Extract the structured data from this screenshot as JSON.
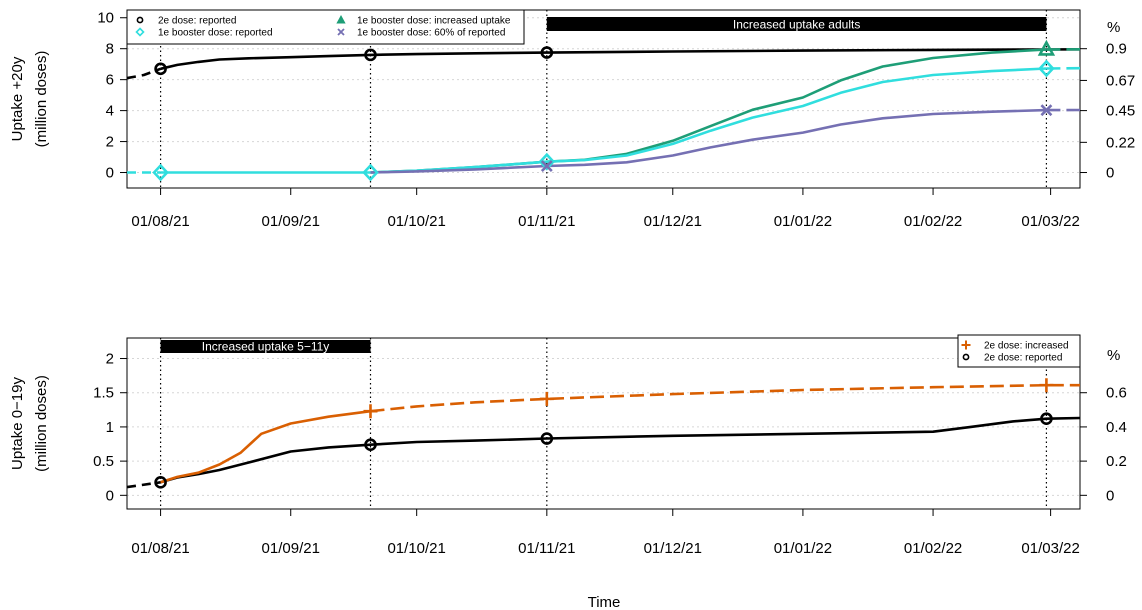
{
  "xlabel": "Time",
  "colors": {
    "reported_2e": "#000000",
    "booster_reported": "#30dede",
    "booster_increased": "#1e9e77",
    "booster_60pct": "#7570b3",
    "increased_2e": "#d95f02"
  },
  "chart_data": [
    {
      "type": "line",
      "ylabel": "Uptake +20y",
      "ylabel2": "(million doses)",
      "y2_unit": "%",
      "ylim": [
        -1,
        10.5
      ],
      "yticks": [
        0,
        2,
        4,
        6,
        8,
        10
      ],
      "y2_ticks": [
        {
          "label": "0",
          "at": 0
        },
        {
          "label": "0.22",
          "at": 1.95
        },
        {
          "label": "0.45",
          "at": 4.0
        },
        {
          "label": "0.67",
          "at": 5.95
        },
        {
          "label": "0.9",
          "at": 8.0
        }
      ],
      "x_ticks": [
        "01/08/21",
        "01/09/21",
        "01/10/21",
        "01/11/21",
        "01/12/21",
        "01/01/22",
        "01/02/22",
        "01/03/22"
      ],
      "grid": "horizontal dotted",
      "vlines": [
        "2021-08-01",
        "2021-09-20",
        "2021-11-01",
        "2022-02-28"
      ],
      "band": {
        "label": "Increased uptake adults",
        "start": "2021-11-01",
        "end": "2022-02-28"
      },
      "legend": {
        "position": "top-left",
        "entries": [
          {
            "label": "2e dose: reported",
            "series": "reported_2e",
            "marker": "circle"
          },
          {
            "label": "1e booster dose: reported",
            "series": "booster_reported",
            "marker": "diamond"
          },
          {
            "label": "1e booster dose: increased uptake",
            "series": "booster_increased",
            "marker": "triangle"
          },
          {
            "label": "1e booster dose: 60% of reported",
            "series": "booster_60pct",
            "marker": "cross"
          }
        ]
      },
      "series": [
        {
          "key": "reported_2e",
          "color": "#000000",
          "dashed_before": "2021-08-01",
          "dashed_after": null,
          "points": [
            [
              "2021-07-24",
              6.1
            ],
            [
              "2021-07-28",
              6.3
            ],
            [
              "2021-08-01",
              6.7
            ],
            [
              "2021-08-05",
              6.95
            ],
            [
              "2021-08-10",
              7.15
            ],
            [
              "2021-08-15",
              7.3
            ],
            [
              "2021-08-22",
              7.38
            ],
            [
              "2021-09-01",
              7.45
            ],
            [
              "2021-09-10",
              7.52
            ],
            [
              "2021-09-20",
              7.6
            ],
            [
              "2021-10-01",
              7.65
            ],
            [
              "2021-10-15",
              7.7
            ],
            [
              "2021-11-01",
              7.75
            ],
            [
              "2021-12-01",
              7.82
            ],
            [
              "2022-01-01",
              7.88
            ],
            [
              "2022-02-01",
              7.92
            ],
            [
              "2022-02-28",
              7.95
            ],
            [
              "2022-03-08",
              7.96
            ]
          ],
          "markers": [
            [
              "2021-08-01",
              6.7
            ],
            [
              "2021-09-20",
              7.6
            ],
            [
              "2021-11-01",
              7.75
            ]
          ]
        },
        {
          "key": "booster_increased",
          "color": "#1e9e77",
          "dashed_before": null,
          "dashed_after": "2022-02-28",
          "points": [
            [
              "2021-09-20",
              0.0
            ],
            [
              "2021-10-01",
              0.12
            ],
            [
              "2021-10-15",
              0.35
            ],
            [
              "2021-11-01",
              0.7
            ],
            [
              "2021-11-10",
              0.82
            ],
            [
              "2021-11-20",
              1.2
            ],
            [
              "2021-12-01",
              2.05
            ],
            [
              "2021-12-10",
              3.0
            ],
            [
              "2021-12-20",
              4.05
            ],
            [
              "2022-01-01",
              4.85
            ],
            [
              "2022-01-10",
              5.95
            ],
            [
              "2022-01-20",
              6.85
            ],
            [
              "2022-02-01",
              7.4
            ],
            [
              "2022-02-15",
              7.75
            ],
            [
              "2022-02-28",
              7.95
            ],
            [
              "2022-03-08",
              7.96
            ]
          ],
          "markers": [
            [
              "2022-02-28",
              7.95
            ]
          ]
        },
        {
          "key": "booster_reported",
          "color": "#30dede",
          "dashed_before": "2021-08-01",
          "dashed_after": "2022-02-28",
          "points": [
            [
              "2021-07-24",
              0.0
            ],
            [
              "2021-08-01",
              0.0
            ],
            [
              "2021-09-20",
              0.0
            ],
            [
              "2021-10-01",
              0.12
            ],
            [
              "2021-10-15",
              0.35
            ],
            [
              "2021-11-01",
              0.7
            ],
            [
              "2021-11-10",
              0.8
            ],
            [
              "2021-11-20",
              1.1
            ],
            [
              "2021-12-01",
              1.85
            ],
            [
              "2021-12-10",
              2.7
            ],
            [
              "2021-12-20",
              3.55
            ],
            [
              "2022-01-01",
              4.3
            ],
            [
              "2022-01-10",
              5.15
            ],
            [
              "2022-01-20",
              5.85
            ],
            [
              "2022-02-01",
              6.3
            ],
            [
              "2022-02-15",
              6.55
            ],
            [
              "2022-02-28",
              6.72
            ],
            [
              "2022-03-08",
              6.74
            ]
          ],
          "markers": [
            [
              "2021-08-01",
              0.0
            ],
            [
              "2021-09-20",
              0.0
            ],
            [
              "2021-11-01",
              0.7
            ],
            [
              "2022-02-28",
              6.72
            ]
          ]
        },
        {
          "key": "booster_60pct",
          "color": "#7570b3",
          "dashed_before": null,
          "dashed_after": "2022-02-28",
          "points": [
            [
              "2021-09-20",
              0.0
            ],
            [
              "2021-10-01",
              0.07
            ],
            [
              "2021-10-15",
              0.2
            ],
            [
              "2021-11-01",
              0.42
            ],
            [
              "2021-11-10",
              0.5
            ],
            [
              "2021-11-20",
              0.66
            ],
            [
              "2021-12-01",
              1.1
            ],
            [
              "2021-12-10",
              1.62
            ],
            [
              "2021-12-20",
              2.12
            ],
            [
              "2022-01-01",
              2.58
            ],
            [
              "2022-01-10",
              3.1
            ],
            [
              "2022-01-20",
              3.5
            ],
            [
              "2022-02-01",
              3.78
            ],
            [
              "2022-02-15",
              3.93
            ],
            [
              "2022-02-28",
              4.03
            ],
            [
              "2022-03-08",
              4.04
            ]
          ],
          "markers": [
            [
              "2021-11-01",
              0.42
            ],
            [
              "2022-02-28",
              4.03
            ]
          ]
        }
      ]
    },
    {
      "type": "line",
      "ylabel": "Uptake 0−19y",
      "ylabel2": "(million doses)",
      "y2_unit": "%",
      "ylim": [
        -0.2,
        2.3
      ],
      "yticks": [
        0,
        0.5,
        1,
        1.5,
        2
      ],
      "y2_ticks": [
        {
          "label": "0",
          "at": 0
        },
        {
          "label": "0.2",
          "at": 0.5
        },
        {
          "label": "0.4",
          "at": 1.0
        },
        {
          "label": "0.6",
          "at": 1.5
        }
      ],
      "x_ticks": [
        "01/08/21",
        "01/09/21",
        "01/10/21",
        "01/11/21",
        "01/12/21",
        "01/01/22",
        "01/02/22",
        "01/03/22"
      ],
      "grid": "horizontal dotted",
      "vlines": [
        "2021-08-01",
        "2021-09-20",
        "2021-11-01",
        "2022-02-28"
      ],
      "band": {
        "label": "Increased uptake 5−11y",
        "start": "2021-08-01",
        "end": "2021-09-20"
      },
      "legend": {
        "position": "top-right",
        "entries": [
          {
            "label": "2e dose: increased",
            "series": "increased_2e",
            "marker": "plus"
          },
          {
            "label": "2e dose: reported",
            "series": "reported_2e",
            "marker": "circle"
          }
        ]
      },
      "series": [
        {
          "key": "reported_2e",
          "color": "#000000",
          "dashed_before": "2021-08-01",
          "dashed_after": null,
          "points": [
            [
              "2021-07-24",
              0.12
            ],
            [
              "2021-08-01",
              0.19
            ],
            [
              "2021-08-05",
              0.26
            ],
            [
              "2021-08-10",
              0.31
            ],
            [
              "2021-08-15",
              0.37
            ],
            [
              "2021-08-22",
              0.48
            ],
            [
              "2021-09-01",
              0.64
            ],
            [
              "2021-09-10",
              0.7
            ],
            [
              "2021-09-20",
              0.74
            ],
            [
              "2021-10-01",
              0.78
            ],
            [
              "2021-10-15",
              0.8
            ],
            [
              "2021-11-01",
              0.83
            ],
            [
              "2021-12-01",
              0.87
            ],
            [
              "2022-01-01",
              0.9
            ],
            [
              "2022-02-01",
              0.93
            ],
            [
              "2022-02-10",
              1.0
            ],
            [
              "2022-02-20",
              1.08
            ],
            [
              "2022-02-28",
              1.12
            ],
            [
              "2022-03-08",
              1.13
            ]
          ],
          "markers": [
            [
              "2021-08-01",
              0.19
            ],
            [
              "2021-09-20",
              0.74
            ],
            [
              "2021-11-01",
              0.83
            ],
            [
              "2022-02-28",
              1.12
            ]
          ]
        },
        {
          "key": "increased_2e",
          "color": "#d95f02",
          "dashed_before": null,
          "dashed_after": "2021-09-20",
          "points": [
            [
              "2021-08-01",
              0.19
            ],
            [
              "2021-08-05",
              0.27
            ],
            [
              "2021-08-10",
              0.33
            ],
            [
              "2021-08-15",
              0.45
            ],
            [
              "2021-08-20",
              0.62
            ],
            [
              "2021-08-25",
              0.9
            ],
            [
              "2021-09-01",
              1.05
            ],
            [
              "2021-09-10",
              1.15
            ],
            [
              "2021-09-20",
              1.23
            ],
            [
              "2021-10-01",
              1.3
            ],
            [
              "2021-10-15",
              1.36
            ],
            [
              "2021-11-01",
              1.41
            ],
            [
              "2021-12-01",
              1.48
            ],
            [
              "2022-01-01",
              1.54
            ],
            [
              "2022-02-01",
              1.58
            ],
            [
              "2022-02-28",
              1.61
            ],
            [
              "2022-03-08",
              1.61
            ]
          ],
          "markers": [
            [
              "2021-09-20",
              1.23
            ],
            [
              "2021-11-01",
              1.41
            ],
            [
              "2022-02-28",
              1.61
            ]
          ]
        }
      ]
    }
  ]
}
